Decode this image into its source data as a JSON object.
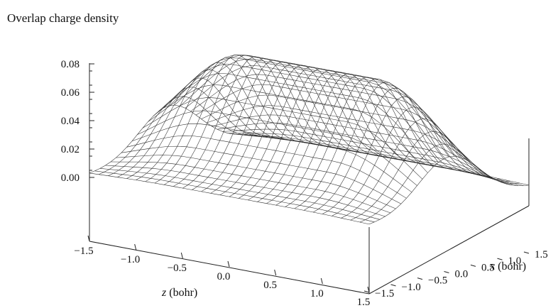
{
  "chart_data": {
    "type": "surface",
    "title": "Overlap charge density",
    "z_axis": {
      "ticks": [
        "0.08",
        "0.06",
        "0.04",
        "0.02",
        "0.00"
      ],
      "range": [
        0.0,
        0.08
      ]
    },
    "x_axis": {
      "label_var": "z",
      "label_unit": " (bohr)",
      "ticks": [
        "−1.5",
        "−1.0",
        "−0.5",
        "0.0",
        "0.5",
        "1.0",
        "1.5"
      ],
      "range": [
        -1.5,
        1.5
      ]
    },
    "y_axis": {
      "label_var": "x",
      "label_unit": " (bohr)",
      "ticks": [
        "−1.5",
        "−1.0",
        "−0.5",
        "0.0",
        "0.5",
        "1.0",
        "1.5"
      ],
      "range": [
        -1.5,
        1.5
      ]
    },
    "surface": {
      "grid": 31,
      "peak": 0.08,
      "description_of_shape": "plateau along z between about -0.7 and 0.7 at x = 0, decaying with |x| and beyond |z| = 0.7"
    }
  }
}
